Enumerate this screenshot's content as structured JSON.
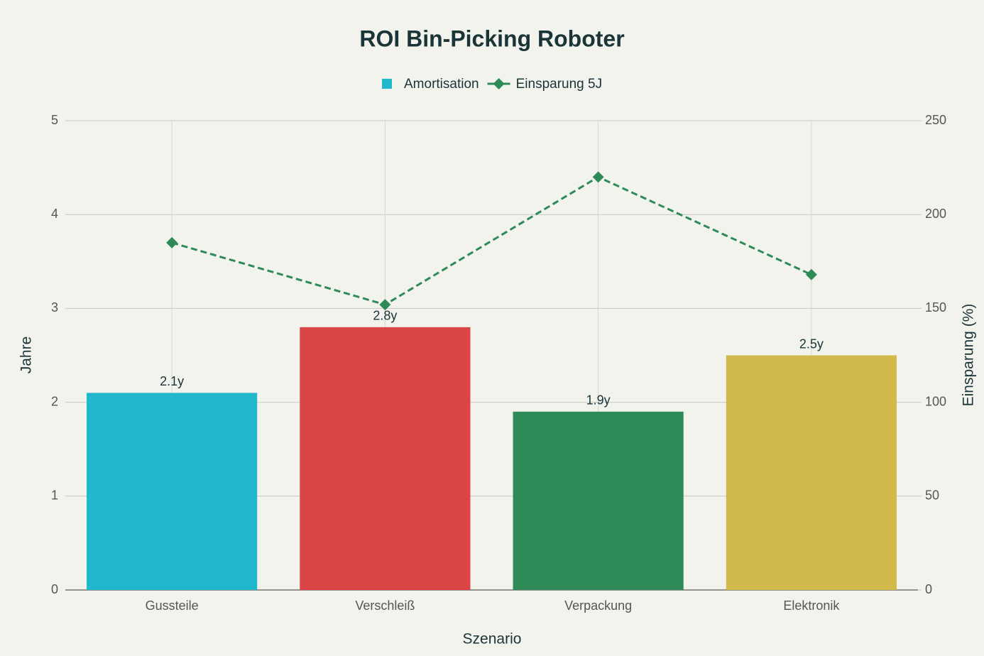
{
  "chart_data": {
    "type": "bar",
    "title": "ROI Bin-Picking Roboter",
    "x_label": "Szenario",
    "y_label": "Jahre",
    "y2_label": "Einsparung (%)",
    "categories": [
      "Gussteile",
      "Verschleiß",
      "Verpackung",
      "Elektronik"
    ],
    "series": [
      {
        "name": "Amortisation",
        "type": "bar",
        "color": "#21b8cc",
        "colors": [
          "#21b8cc",
          "#db4545",
          "#2e8b57",
          "#d2b94b"
        ],
        "values": [
          2.1,
          2.8,
          1.9,
          2.5
        ],
        "value_labels": [
          "2.1y",
          "2.8y",
          "1.9y",
          "2.5y"
        ]
      },
      {
        "name": "Einsparung 5J",
        "type": "line",
        "axis": "y2",
        "color": "#2e8b57",
        "dashed": true,
        "marker": "diamond",
        "values": [
          185,
          152,
          220,
          168
        ]
      }
    ],
    "ylim": [
      0,
      5
    ],
    "yticks": [
      0,
      1,
      2,
      3,
      4,
      5
    ],
    "y2lim": [
      0,
      250
    ],
    "y2ticks": [
      0,
      50,
      100,
      150,
      200,
      250
    ],
    "grid": true,
    "legend": "top"
  }
}
